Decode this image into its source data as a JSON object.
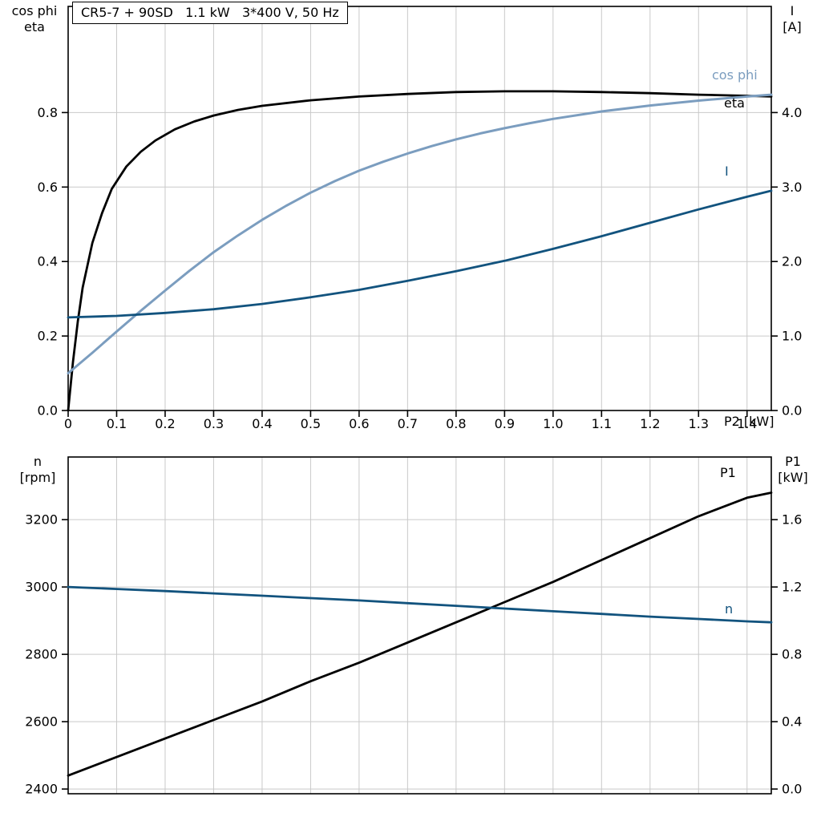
{
  "title_box": "CR5-7 + 90SD   1.1 kW   3*400 V, 50 Hz",
  "labels": {
    "top_left": [
      "cos phi",
      "eta"
    ],
    "top_right": [
      "I",
      "[A]"
    ],
    "bottom_left": [
      "n",
      "[rpm]"
    ],
    "bottom_right": [
      "P1",
      "[kW]"
    ],
    "x_axis": "P2 [kW]",
    "curve_cos_phi": "cos phi",
    "curve_eta": "eta",
    "curve_i": "I",
    "curve_p1": "P1",
    "curve_n": "n"
  },
  "colors": {
    "black": "#000000",
    "light_blue": "#7b9dbf",
    "dark_blue": "#12537e",
    "grid": "#c9c9c9",
    "frame": "#000000"
  },
  "chart_data": [
    {
      "type": "line",
      "title": "CR5-7 + 90SD 1.1 kW 3*400 V, 50 Hz",
      "xlabel": "P2 [kW]",
      "ylabel_left": "cos phi / eta",
      "ylabel_right": "I [A]",
      "grid": true,
      "x": {
        "min": 0,
        "max": 1.45,
        "ticks": [
          {
            "v": 0,
            "label": "0"
          },
          {
            "v": 0.1,
            "label": "0.1"
          },
          {
            "v": 0.2,
            "label": "0.2"
          },
          {
            "v": 0.3,
            "label": "0.3"
          },
          {
            "v": 0.4,
            "label": "0.4"
          },
          {
            "v": 0.5,
            "label": "0.5"
          },
          {
            "v": 0.6,
            "label": "0.6"
          },
          {
            "v": 0.7,
            "label": "0.7"
          },
          {
            "v": 0.8,
            "label": "0.8"
          },
          {
            "v": 0.9,
            "label": "0.9"
          },
          {
            "v": 1.0,
            "label": "1.0"
          },
          {
            "v": 1.1,
            "label": "1.1"
          },
          {
            "v": 1.2,
            "label": "1.2"
          },
          {
            "v": 1.3,
            "label": "1.3"
          },
          {
            "v": 1.4,
            "label": "1.4"
          }
        ]
      },
      "y_left": {
        "min": 0,
        "max": 1.085,
        "ticks": [
          {
            "v": 0.0,
            "label": "0.0"
          },
          {
            "v": 0.2,
            "label": "0.2"
          },
          {
            "v": 0.4,
            "label": "0.4"
          },
          {
            "v": 0.6,
            "label": "0.6"
          },
          {
            "v": 0.8,
            "label": "0.8"
          }
        ]
      },
      "y_right": {
        "min": 0,
        "max": 5.425,
        "ticks": [
          {
            "v": 0.0,
            "label": "0.0"
          },
          {
            "v": 1.0,
            "label": "1.0"
          },
          {
            "v": 2.0,
            "label": "2.0"
          },
          {
            "v": 3.0,
            "label": "3.0"
          },
          {
            "v": 4.0,
            "label": "4.0"
          }
        ]
      },
      "series": [
        {
          "name": "eta",
          "axis": "left",
          "color_key": "black",
          "width": 2.8,
          "points": [
            [
              0,
              0
            ],
            [
              0.01,
              0.13
            ],
            [
              0.02,
              0.24
            ],
            [
              0.03,
              0.33
            ],
            [
              0.05,
              0.45
            ],
            [
              0.07,
              0.53
            ],
            [
              0.09,
              0.595
            ],
            [
              0.12,
              0.655
            ],
            [
              0.15,
              0.695
            ],
            [
              0.18,
              0.725
            ],
            [
              0.22,
              0.755
            ],
            [
              0.26,
              0.776
            ],
            [
              0.3,
              0.792
            ],
            [
              0.35,
              0.807
            ],
            [
              0.4,
              0.818
            ],
            [
              0.5,
              0.833
            ],
            [
              0.6,
              0.843
            ],
            [
              0.7,
              0.85
            ],
            [
              0.8,
              0.855
            ],
            [
              0.9,
              0.857
            ],
            [
              1.0,
              0.857
            ],
            [
              1.1,
              0.855
            ],
            [
              1.2,
              0.852
            ],
            [
              1.3,
              0.848
            ],
            [
              1.4,
              0.845
            ],
            [
              1.45,
              0.843
            ]
          ]
        },
        {
          "name": "cos phi",
          "axis": "left",
          "color_key": "light_blue",
          "width": 3,
          "points": [
            [
              0,
              0.1
            ],
            [
              0.05,
              0.155
            ],
            [
              0.1,
              0.212
            ],
            [
              0.15,
              0.268
            ],
            [
              0.2,
              0.322
            ],
            [
              0.25,
              0.375
            ],
            [
              0.3,
              0.425
            ],
            [
              0.35,
              0.47
            ],
            [
              0.4,
              0.512
            ],
            [
              0.45,
              0.55
            ],
            [
              0.5,
              0.585
            ],
            [
              0.55,
              0.616
            ],
            [
              0.6,
              0.644
            ],
            [
              0.65,
              0.668
            ],
            [
              0.7,
              0.69
            ],
            [
              0.75,
              0.71
            ],
            [
              0.8,
              0.728
            ],
            [
              0.85,
              0.744
            ],
            [
              0.9,
              0.758
            ],
            [
              0.95,
              0.771
            ],
            [
              1.0,
              0.783
            ],
            [
              1.1,
              0.803
            ],
            [
              1.2,
              0.819
            ],
            [
              1.3,
              0.832
            ],
            [
              1.4,
              0.843
            ],
            [
              1.45,
              0.848
            ]
          ]
        },
        {
          "name": "I",
          "axis": "right",
          "color_key": "dark_blue",
          "width": 2.8,
          "points": [
            [
              0,
              1.25
            ],
            [
              0.1,
              1.27
            ],
            [
              0.2,
              1.31
            ],
            [
              0.3,
              1.36
            ],
            [
              0.4,
              1.43
            ],
            [
              0.5,
              1.52
            ],
            [
              0.6,
              1.62
            ],
            [
              0.7,
              1.74
            ],
            [
              0.8,
              1.87
            ],
            [
              0.9,
              2.01
            ],
            [
              1.0,
              2.17
            ],
            [
              1.1,
              2.34
            ],
            [
              1.2,
              2.52
            ],
            [
              1.3,
              2.7
            ],
            [
              1.4,
              2.87
            ],
            [
              1.45,
              2.95
            ]
          ]
        }
      ]
    },
    {
      "type": "line",
      "title": "",
      "xlabel": "",
      "ylabel_left": "n [rpm]",
      "ylabel_right": "P1 [kW]",
      "grid": true,
      "x": {
        "min": 0,
        "max": 1.45,
        "ticks": [
          {
            "v": 0,
            "label": ""
          },
          {
            "v": 0.1,
            "label": ""
          },
          {
            "v": 0.2,
            "label": ""
          },
          {
            "v": 0.3,
            "label": ""
          },
          {
            "v": 0.4,
            "label": ""
          },
          {
            "v": 0.5,
            "label": ""
          },
          {
            "v": 0.6,
            "label": ""
          },
          {
            "v": 0.7,
            "label": ""
          },
          {
            "v": 0.8,
            "label": ""
          },
          {
            "v": 0.9,
            "label": ""
          },
          {
            "v": 1.0,
            "label": ""
          },
          {
            "v": 1.1,
            "label": ""
          },
          {
            "v": 1.2,
            "label": ""
          },
          {
            "v": 1.3,
            "label": ""
          },
          {
            "v": 1.4,
            "label": ""
          }
        ]
      },
      "y_left": {
        "min": 2386,
        "max": 3386,
        "ticks": [
          {
            "v": 2400,
            "label": "2400"
          },
          {
            "v": 2600,
            "label": "2600"
          },
          {
            "v": 2800,
            "label": "2800"
          },
          {
            "v": 3000,
            "label": "3000"
          },
          {
            "v": 3200,
            "label": "3200"
          }
        ]
      },
      "y_right": {
        "min": -0.028,
        "max": 1.972,
        "ticks": [
          {
            "v": 0.0,
            "label": "0.0"
          },
          {
            "v": 0.4,
            "label": "0.4"
          },
          {
            "v": 0.8,
            "label": "0.8"
          },
          {
            "v": 1.2,
            "label": "1.2"
          },
          {
            "v": 1.6,
            "label": "1.6"
          }
        ]
      },
      "series": [
        {
          "name": "P1",
          "axis": "right",
          "color_key": "black",
          "width": 2.8,
          "points": [
            [
              0,
              0.08
            ],
            [
              0.1,
              0.19
            ],
            [
              0.2,
              0.3
            ],
            [
              0.3,
              0.41
            ],
            [
              0.4,
              0.52
            ],
            [
              0.5,
              0.64
            ],
            [
              0.6,
              0.75
            ],
            [
              0.7,
              0.87
            ],
            [
              0.8,
              0.99
            ],
            [
              0.9,
              1.11
            ],
            [
              1.0,
              1.23
            ],
            [
              1.1,
              1.36
            ],
            [
              1.2,
              1.49
            ],
            [
              1.3,
              1.62
            ],
            [
              1.4,
              1.73
            ],
            [
              1.45,
              1.76
            ]
          ]
        },
        {
          "name": "n",
          "axis": "left",
          "color_key": "dark_blue",
          "width": 2.8,
          "points": [
            [
              0,
              3000
            ],
            [
              0.1,
              2994
            ],
            [
              0.2,
              2988
            ],
            [
              0.3,
              2981
            ],
            [
              0.4,
              2974
            ],
            [
              0.5,
              2967
            ],
            [
              0.6,
              2960
            ],
            [
              0.7,
              2952
            ],
            [
              0.8,
              2944
            ],
            [
              0.9,
              2936
            ],
            [
              1.0,
              2928
            ],
            [
              1.1,
              2920
            ],
            [
              1.2,
              2912
            ],
            [
              1.3,
              2905
            ],
            [
              1.4,
              2898
            ],
            [
              1.45,
              2895
            ]
          ]
        }
      ]
    }
  ]
}
